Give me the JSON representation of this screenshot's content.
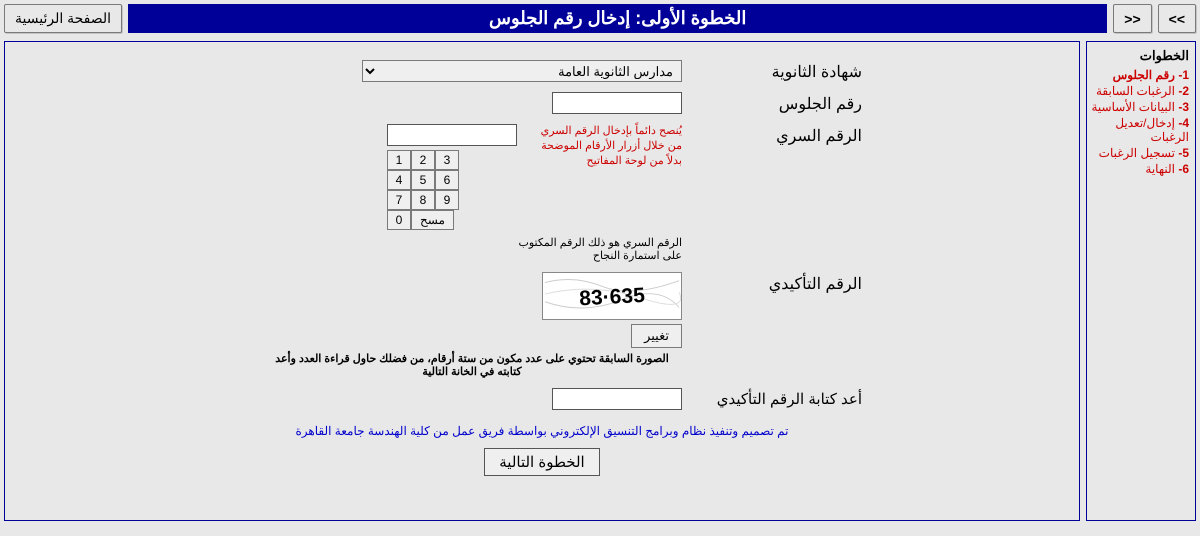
{
  "nav": {
    "prev": "<<",
    "next": ">>",
    "home": "الصفحة الرئيسية"
  },
  "banner": "الخطوة الأولى: إدخال رقم الجلوس",
  "sidebar": {
    "title": "الخطوات",
    "items": [
      {
        "n": "1",
        "label": "رقم الجلوس",
        "active": true
      },
      {
        "n": "2",
        "label": "الرغبات السابقة"
      },
      {
        "n": "3",
        "label": "البيانات الأساسية"
      },
      {
        "n": "4",
        "label": "إدخال/تعديل الرغبات"
      },
      {
        "n": "5",
        "label": "تسجيل الرغبات"
      },
      {
        "n": "6",
        "label": "النهاية"
      }
    ]
  },
  "form": {
    "cert_label": "شهادة الثانوية",
    "cert_option": "مدارس الثانوية العامة",
    "seat_label": "رقم الجلوس",
    "secret_label": "الرقم السري",
    "secret_hint": "يُنصح دائماً بإدخال الرقم السري من خلال أزرار الأرقام الموضحة بدلاً من لوحة المفاتيح",
    "keypad": [
      "1",
      "2",
      "3",
      "4",
      "5",
      "6",
      "7",
      "8",
      "9",
      "0"
    ],
    "clear": "مسح",
    "secret_note": "الرقم السري هو ذلك الرقم المكتوب على استمارة النجاح",
    "captcha_label": "الرقم التأكيدي",
    "captcha_text": "635·83",
    "change": "تغيير",
    "captcha_note": "الصورة السابقة تحتوي على عدد مكون من ستة أرقام، من فضلك حاول قراءة العدد وأعد كتابته في الخانة التالية",
    "confirm_label": "أعد كتابة الرقم التأكيدي",
    "credit": "تم تصميم وتنفيذ نظام وبرامج التنسيق الإلكتروني بواسطة فريق عمل من كلية الهندسة جامعة القاهرة",
    "next": "الخطوة التالية"
  },
  "colors": {
    "banner_bg": "#000099",
    "border": "#000099",
    "step_link": "#cc0000",
    "credit": "#0000cc",
    "page_bg": "#e8e8e8"
  }
}
